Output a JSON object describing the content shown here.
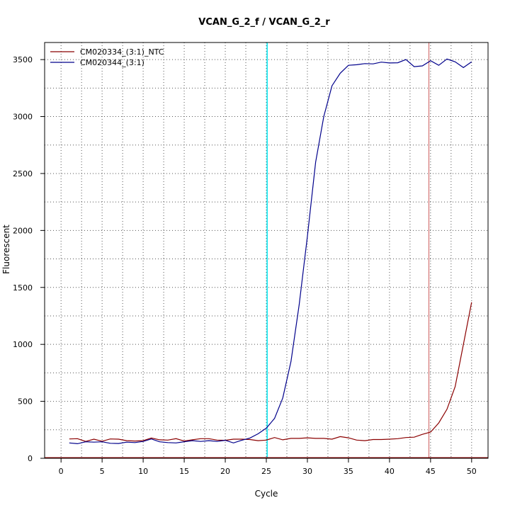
{
  "chart_data": {
    "type": "line",
    "title": "VCAN_G_2_f / VCAN_G_2_r",
    "xlabel": "Cycle",
    "ylabel": "Fluorescent",
    "xlim": [
      -2,
      52
    ],
    "ylim": [
      0,
      3650
    ],
    "x_ticks": [
      0,
      5,
      10,
      15,
      20,
      25,
      30,
      35,
      40,
      45,
      50
    ],
    "y_ticks": [
      0,
      500,
      1000,
      1500,
      2000,
      2500,
      3000,
      3500
    ],
    "grid": "dotted",
    "legend_position": "top-left",
    "vertical_lines": [
      {
        "x": 25.1,
        "color": "#00e5ee"
      },
      {
        "x": 44.8,
        "color": "#cd5c5c"
      }
    ],
    "series": [
      {
        "name": "CM020334_(3:1)_NTC",
        "color": "#8b0000",
        "x": [
          1,
          2,
          3,
          4,
          5,
          6,
          7,
          8,
          9,
          10,
          11,
          12,
          13,
          14,
          15,
          16,
          17,
          18,
          19,
          20,
          21,
          22,
          23,
          24,
          25,
          26,
          27,
          28,
          29,
          30,
          31,
          32,
          33,
          34,
          35,
          36,
          37,
          38,
          39,
          40,
          41,
          42,
          43,
          44,
          45,
          46,
          47,
          48,
          49,
          50
        ],
        "y": [
          170,
          172,
          148,
          168,
          150,
          170,
          168,
          155,
          152,
          155,
          178,
          162,
          160,
          172,
          152,
          162,
          172,
          172,
          160,
          158,
          168,
          168,
          165,
          155,
          160,
          182,
          162,
          175,
          175,
          180,
          175,
          175,
          168,
          190,
          180,
          160,
          155,
          165,
          165,
          168,
          172,
          182,
          185,
          210,
          230,
          310,
          430,
          630,
          1000,
          1370
        ]
      },
      {
        "name": "CM020344_(3:1)",
        "color": "#00008b",
        "x": [
          1,
          2,
          3,
          4,
          5,
          6,
          7,
          8,
          9,
          10,
          11,
          12,
          13,
          14,
          15,
          16,
          17,
          18,
          19,
          20,
          21,
          22,
          23,
          24,
          25,
          26,
          27,
          28,
          29,
          30,
          31,
          32,
          33,
          34,
          35,
          36,
          37,
          38,
          39,
          40,
          41,
          42,
          43,
          44,
          45,
          46,
          47,
          48,
          49,
          50
        ],
        "y": [
          135,
          128,
          145,
          142,
          145,
          132,
          130,
          142,
          138,
          148,
          170,
          145,
          138,
          135,
          145,
          155,
          148,
          155,
          148,
          158,
          135,
          158,
          178,
          215,
          265,
          350,
          530,
          850,
          1350,
          1950,
          2600,
          3000,
          3270,
          3380,
          3450,
          3455,
          3465,
          3462,
          3478,
          3470,
          3472,
          3500,
          3438,
          3445,
          3490,
          3450,
          3505,
          3480,
          3430,
          3480
        ]
      }
    ]
  }
}
